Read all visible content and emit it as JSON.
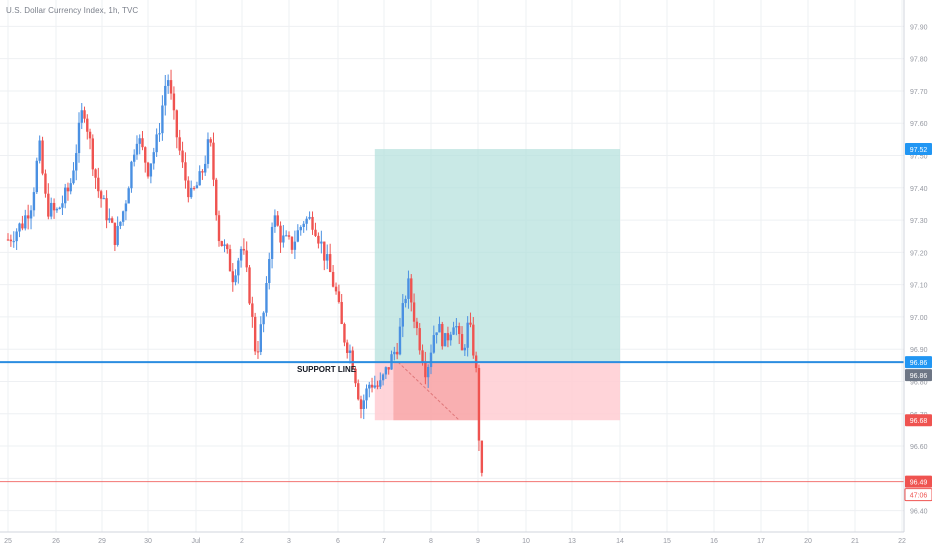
{
  "chart_data": {
    "type": "candlestick",
    "title": "U.S. Dollar Currency Index, 1h, TVC",
    "colors": {
      "up": "#4a90e2",
      "down": "#ef5350",
      "support_line": "#2b8de0",
      "level_line": "#ef5350",
      "target_zone": "#b2dfdb",
      "stop_zone": "#ffcdd2",
      "grid": "#eef0f3",
      "axis_text": "#9598a1",
      "badge_blue": "#2196f3",
      "badge_grey": "#6d7685",
      "badge_red": "#ef5350"
    },
    "y_axis": {
      "min": 96.34,
      "max": 97.96,
      "ticks": [
        "97.90",
        "97.80",
        "97.70",
        "97.60",
        "97.50",
        "97.40",
        "97.30",
        "97.20",
        "97.10",
        "97.00",
        "96.90",
        "96.80",
        "96.70",
        "96.60",
        "96.50",
        "96.40"
      ],
      "tick_values": [
        97.9,
        97.8,
        97.7,
        97.6,
        97.5,
        97.4,
        97.3,
        97.2,
        97.1,
        97.0,
        96.9,
        96.8,
        96.7,
        96.6,
        96.5,
        96.4
      ]
    },
    "x_axis": {
      "labels": [
        "25",
        "26",
        "29",
        "30",
        "Jul",
        "2",
        "3",
        "6",
        "7",
        "8",
        "9",
        "10",
        "13",
        "14",
        "15",
        "16",
        "17",
        "20",
        "21",
        "22"
      ],
      "label_index": [
        0,
        1,
        2,
        3,
        4,
        5,
        6,
        7,
        8,
        9,
        10,
        11,
        12,
        13,
        14,
        15,
        16,
        17,
        18,
        19
      ]
    },
    "price_series": [
      {
        "t": 0,
        "v": 97.24
      },
      {
        "t": 0.3,
        "v": 97.29
      },
      {
        "t": 0.5,
        "v": 97.36
      },
      {
        "t": 0.65,
        "v": 97.53
      },
      {
        "t": 0.8,
        "v": 97.34
      },
      {
        "t": 1.0,
        "v": 97.32
      },
      {
        "t": 1.3,
        "v": 97.4
      },
      {
        "t": 1.6,
        "v": 97.66
      },
      {
        "t": 1.9,
        "v": 97.4
      },
      {
        "t": 2.1,
        "v": 97.32
      },
      {
        "t": 2.3,
        "v": 97.24
      },
      {
        "t": 2.5,
        "v": 97.35
      },
      {
        "t": 2.75,
        "v": 97.57
      },
      {
        "t": 3.0,
        "v": 97.46
      },
      {
        "t": 3.2,
        "v": 97.55
      },
      {
        "t": 3.4,
        "v": 97.76
      },
      {
        "t": 3.55,
        "v": 97.6
      },
      {
        "t": 3.75,
        "v": 97.44
      },
      {
        "t": 3.9,
        "v": 97.37
      },
      {
        "t": 4.1,
        "v": 97.43
      },
      {
        "t": 4.3,
        "v": 97.55
      },
      {
        "t": 4.5,
        "v": 97.25
      },
      {
        "t": 4.65,
        "v": 97.2
      },
      {
        "t": 4.8,
        "v": 97.13
      },
      {
        "t": 5.0,
        "v": 97.22
      },
      {
        "t": 5.15,
        "v": 97.08
      },
      {
        "t": 5.3,
        "v": 96.88
      },
      {
        "t": 5.5,
        "v": 97.04
      },
      {
        "t": 5.65,
        "v": 97.32
      },
      {
        "t": 5.85,
        "v": 97.24
      },
      {
        "t": 6.05,
        "v": 97.22
      },
      {
        "t": 6.3,
        "v": 97.3
      },
      {
        "t": 6.5,
        "v": 97.3
      },
      {
        "t": 6.75,
        "v": 97.18
      },
      {
        "t": 6.95,
        "v": 97.08
      },
      {
        "t": 7.1,
        "v": 96.95
      },
      {
        "t": 7.3,
        "v": 96.88
      },
      {
        "t": 7.5,
        "v": 96.72
      },
      {
        "t": 7.7,
        "v": 96.8
      },
      {
        "t": 7.9,
        "v": 96.78
      },
      {
        "t": 8.1,
        "v": 96.85
      },
      {
        "t": 8.3,
        "v": 96.92
      },
      {
        "t": 8.5,
        "v": 97.11
      },
      {
        "t": 8.7,
        "v": 96.96
      },
      {
        "t": 8.9,
        "v": 96.83
      },
      {
        "t": 9.1,
        "v": 96.98
      },
      {
        "t": 9.3,
        "v": 96.92
      },
      {
        "t": 9.5,
        "v": 97.0
      },
      {
        "t": 9.65,
        "v": 96.88
      },
      {
        "t": 9.8,
        "v": 96.98
      },
      {
        "t": 9.95,
        "v": 96.86
      },
      {
        "t": 10.0,
        "v": 96.68
      },
      {
        "t": 10.05,
        "v": 96.56
      },
      {
        "t": 10.08,
        "v": 96.49
      }
    ],
    "annotations": {
      "support_label": "SUPPORT LINE",
      "support_price": 96.86,
      "entry_price": 96.86,
      "target_price": 97.52,
      "stop_price": 96.68,
      "current_price": 96.49,
      "zone_start_t": 7.8,
      "zone_end_t": 13.0
    },
    "price_labels": {
      "target": "97.52",
      "support": "96.86",
      "entry": "96.86",
      "stop": "96.68",
      "current": "96.49",
      "countdown": "47:06"
    }
  }
}
